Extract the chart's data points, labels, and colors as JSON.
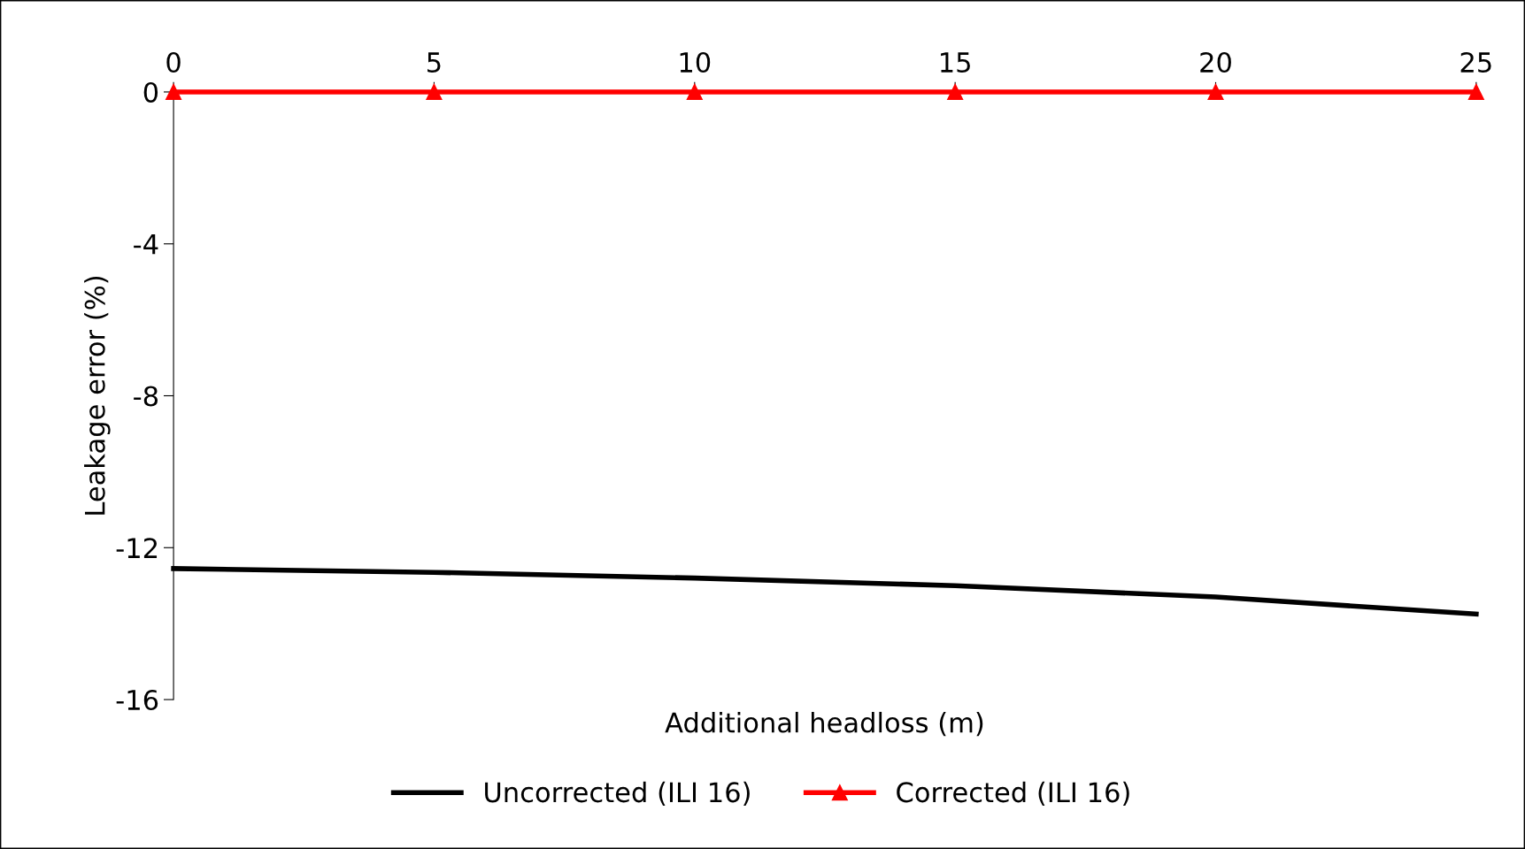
{
  "chart_data": {
    "type": "line",
    "xlabel": "Additional headloss (m)",
    "ylabel": "Leakage error (%)",
    "x": [
      0,
      5,
      10,
      15,
      20,
      25
    ],
    "series": [
      {
        "name": "Uncorrected (ILI 16)",
        "color": "#000000",
        "marker": "none",
        "values": [
          -12.55,
          -12.65,
          -12.8,
          -13.0,
          -13.3,
          -13.75
        ]
      },
      {
        "name": "Corrected (ILI 16)",
        "color": "#ff0000",
        "marker": "triangle",
        "values": [
          0,
          0,
          0,
          0,
          0,
          0
        ]
      }
    ],
    "xlim": [
      0,
      25
    ],
    "xticks": [
      0,
      5,
      10,
      15,
      20,
      25
    ],
    "ylim": [
      -16,
      0
    ],
    "yticks": [
      -16,
      -12,
      -8,
      -4,
      0
    ],
    "grid": false,
    "legend": "bottom",
    "line_style": "solid"
  }
}
